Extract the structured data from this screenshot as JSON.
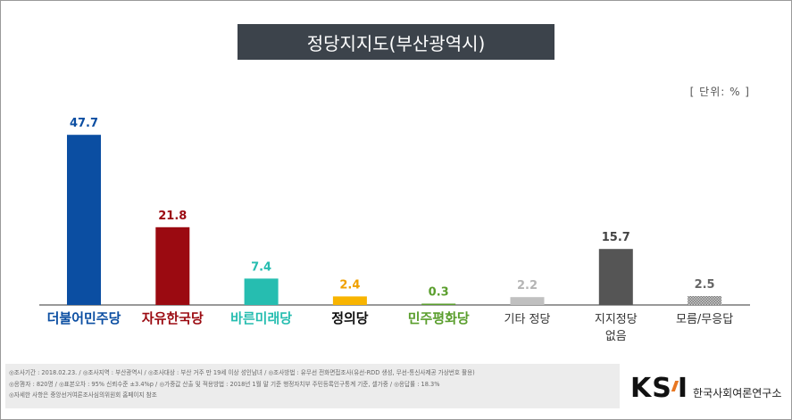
{
  "header": {
    "title": "정당지지도(부산광역시)",
    "unit": "[ 단위: % ]"
  },
  "chart_data": {
    "type": "bar",
    "title": "정당지지도(부산광역시)",
    "categories": [
      "더불어민주당",
      "자유한국당",
      "바른미래당",
      "정의당",
      "민주평화당",
      "기타 정당",
      "지지정당 없음",
      "모름/무응답"
    ],
    "category_lines": [
      [
        "더불어민주당"
      ],
      [
        "자유한국당"
      ],
      [
        "바른미래당"
      ],
      [
        "정의당"
      ],
      [
        "민주평화당"
      ],
      [
        "기타 정당"
      ],
      [
        "지지정당",
        "없음"
      ],
      [
        "모름/무응답"
      ]
    ],
    "values": [
      47.7,
      21.8,
      7.4,
      2.4,
      0.3,
      2.2,
      15.7,
      2.5
    ],
    "value_labels": [
      "47.7",
      "21.8",
      "7.4",
      "2.4",
      "0.3",
      "2.2",
      "15.7",
      "2.5"
    ],
    "colors": [
      "#0b4ea2",
      "#9b0a11",
      "#26bdb0",
      "#f8b400",
      "#5a9e2d",
      "#c0c0c0",
      "#555555",
      "#888888"
    ],
    "label_colors": [
      "#0b4ea2",
      "#9b0a11",
      "#26bdb0",
      "#f0a000",
      "#5a9e2d",
      "#b5b5b5",
      "#444444",
      "#666666"
    ],
    "xlabel": "",
    "ylabel": "",
    "ylim": [
      0,
      50
    ],
    "grid": false,
    "legend": "none"
  },
  "footer": {
    "line1": "◎조사기간 : 2018.02.23.  /  ◎조사지역 : 부산광역시 /  ◎조사대상 : 부산 거주 만 19세 이상 성인남녀 /  ◎조사방법 : 유무선 전화면접조사(유선-RDD 생성, 무선-통신사제공 가상번호 활용)",
    "line2": "◎응答자 : 820명  /  ◎표본오차 : 95%  신뢰수준 ±3.4%p /  ◎가중값 산출 및 적용방법 : 2018년 1월 말 기준 행정자치부 주민등록인구통계 기준, 셀가중 / ◎응답률 : 18.3%",
    "line3": "◎자세한 사항은 중앙선거여론조사심의위원회 홈페이지 참조"
  },
  "logo": {
    "mark_left": "KS",
    "mark_right": "I",
    "org_name": "한국사회여론연구소"
  }
}
